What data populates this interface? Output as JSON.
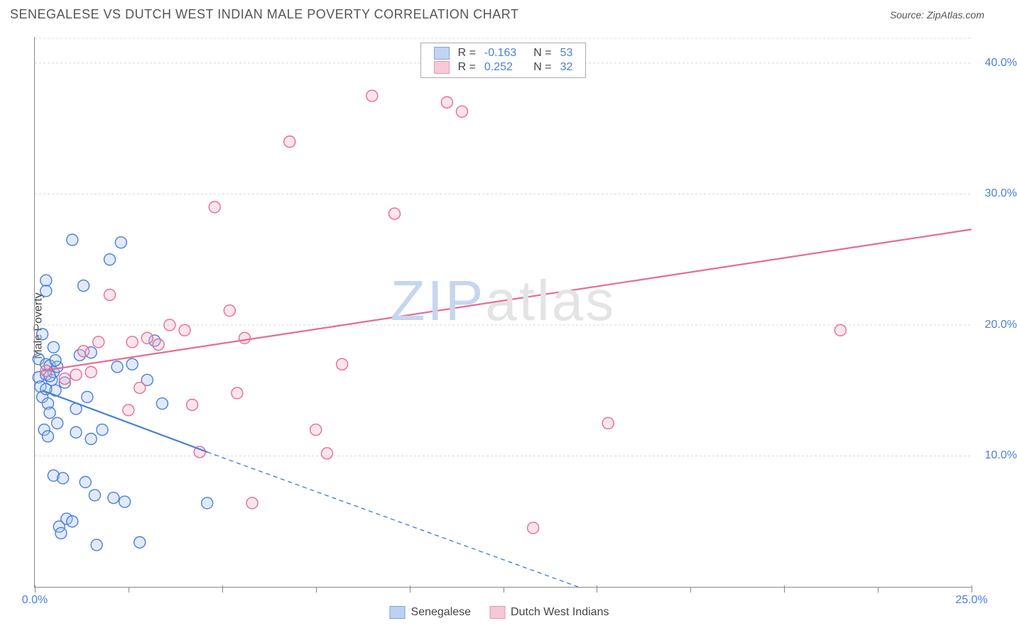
{
  "header": {
    "title": "SENEGALESE VS DUTCH WEST INDIAN MALE POVERTY CORRELATION CHART",
    "source_label": "Source:",
    "source_value": "ZipAtlas.com"
  },
  "ylabel": "Male Poverty",
  "watermark": {
    "part1": "ZIP",
    "part2": "atlas"
  },
  "chart": {
    "type": "scatter",
    "xlim": [
      0,
      25
    ],
    "ylim": [
      0,
      42
    ],
    "background_color": "#ffffff",
    "grid_color": "#d8d8d8",
    "axis_color": "#888888",
    "tick_label_color": "#4a7fd8",
    "tick_fontsize": 16,
    "ylabel_fontsize": 16,
    "y_gridlines": [
      10,
      20,
      30,
      40
    ],
    "y_tick_labels": [
      "10.0%",
      "20.0%",
      "30.0%",
      "40.0%"
    ],
    "x_ticks_major": [
      0,
      5,
      10,
      15,
      20,
      25
    ],
    "x_tick_labels": [
      "0.0%",
      "25.0%"
    ],
    "x_ticks_minor": [
      2.5,
      7.5,
      12.5,
      17.5,
      22.5
    ],
    "marker_radius": 8,
    "marker_fill_opacity": 0.35,
    "marker_stroke_width": 1.4,
    "trend_line_width": 2.2,
    "trend_dash": "6 5"
  },
  "series": [
    {
      "key": "senegalese",
      "label": "Senegalese",
      "color_stroke": "#4a7fd8",
      "color_fill": "#a8c3ec",
      "R": "-0.163",
      "N": "53",
      "trend": {
        "x1": 0.2,
        "y1": 15.0,
        "x2": 4.6,
        "y2": 10.3,
        "x3": 14.5,
        "y3": 0
      },
      "points": [
        [
          0.1,
          17.4
        ],
        [
          0.1,
          16.0
        ],
        [
          0.15,
          15.3
        ],
        [
          0.2,
          19.3
        ],
        [
          0.2,
          14.5
        ],
        [
          0.25,
          12.0
        ],
        [
          0.3,
          23.4
        ],
        [
          0.3,
          22.6
        ],
        [
          0.3,
          17.0
        ],
        [
          0.3,
          16.2
        ],
        [
          0.35,
          11.5
        ],
        [
          0.35,
          14.0
        ],
        [
          0.4,
          16.9
        ],
        [
          0.4,
          13.3
        ],
        [
          0.45,
          15.8
        ],
        [
          0.5,
          18.3
        ],
        [
          0.5,
          16.4
        ],
        [
          0.5,
          8.5
        ],
        [
          0.55,
          15.0
        ],
        [
          0.6,
          16.8
        ],
        [
          0.6,
          12.5
        ],
        [
          0.65,
          4.6
        ],
        [
          0.7,
          4.1
        ],
        [
          0.75,
          8.3
        ],
        [
          0.8,
          15.6
        ],
        [
          0.85,
          5.2
        ],
        [
          1.0,
          5.0
        ],
        [
          1.0,
          26.5
        ],
        [
          1.1,
          13.6
        ],
        [
          1.2,
          17.7
        ],
        [
          1.3,
          23.0
        ],
        [
          1.35,
          8.0
        ],
        [
          1.4,
          14.5
        ],
        [
          1.5,
          17.9
        ],
        [
          1.5,
          11.3
        ],
        [
          1.6,
          7.0
        ],
        [
          1.65,
          3.2
        ],
        [
          1.8,
          12.0
        ],
        [
          2.0,
          25.0
        ],
        [
          2.1,
          6.8
        ],
        [
          2.2,
          16.8
        ],
        [
          2.3,
          26.3
        ],
        [
          2.4,
          6.5
        ],
        [
          2.6,
          17.0
        ],
        [
          2.8,
          3.4
        ],
        [
          3.0,
          15.8
        ],
        [
          3.2,
          18.8
        ],
        [
          3.4,
          14.0
        ],
        [
          0.4,
          16.1
        ],
        [
          0.55,
          17.3
        ],
        [
          0.3,
          15.1
        ],
        [
          1.1,
          11.8
        ],
        [
          4.6,
          6.4
        ]
      ]
    },
    {
      "key": "dutch_west_indians",
      "label": "Dutch West Indians",
      "color_stroke": "#e86b91",
      "color_fill": "#f4b5c8",
      "R": "0.252",
      "N": "32",
      "trend": {
        "x1": 0.2,
        "y1": 16.5,
        "x2": 25.0,
        "y2": 27.3
      },
      "points": [
        [
          0.3,
          16.5
        ],
        [
          0.8,
          15.9
        ],
        [
          1.1,
          16.2
        ],
        [
          1.3,
          18.0
        ],
        [
          1.5,
          16.4
        ],
        [
          1.7,
          18.7
        ],
        [
          2.0,
          22.3
        ],
        [
          2.5,
          13.5
        ],
        [
          2.6,
          18.7
        ],
        [
          2.8,
          15.2
        ],
        [
          3.0,
          19.0
        ],
        [
          3.3,
          18.5
        ],
        [
          3.6,
          20.0
        ],
        [
          4.0,
          19.6
        ],
        [
          4.2,
          13.9
        ],
        [
          4.4,
          10.3
        ],
        [
          4.8,
          29.0
        ],
        [
          5.2,
          21.1
        ],
        [
          5.4,
          14.8
        ],
        [
          5.6,
          19.0
        ],
        [
          5.8,
          6.4
        ],
        [
          6.8,
          34.0
        ],
        [
          7.5,
          12.0
        ],
        [
          7.8,
          10.2
        ],
        [
          8.2,
          17.0
        ],
        [
          9.0,
          37.5
        ],
        [
          9.6,
          28.5
        ],
        [
          11.0,
          37.0
        ],
        [
          11.4,
          36.3
        ],
        [
          13.3,
          4.5
        ],
        [
          15.3,
          12.5
        ],
        [
          21.5,
          19.6
        ]
      ]
    }
  ],
  "legend_top": {
    "R_label": "R =",
    "N_label": "N ="
  }
}
